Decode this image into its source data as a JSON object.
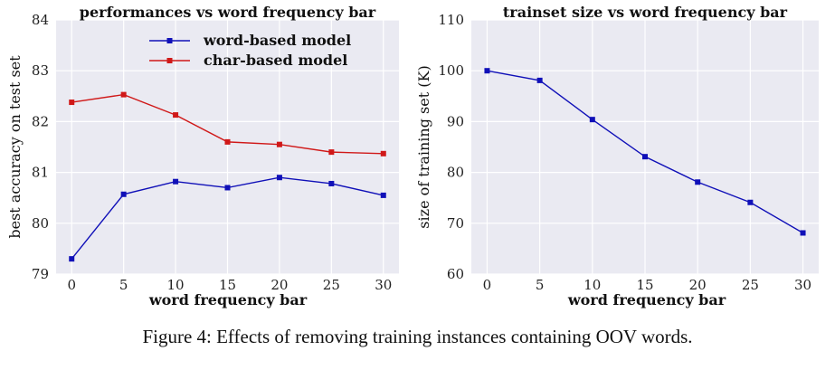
{
  "caption": "Figure 4: Effects of removing training instances containing OOV words.",
  "colors": {
    "plot_background": "#eaeaf2",
    "grid": "#ffffff",
    "word_series": "#1010b8",
    "char_series": "#d01818"
  },
  "chart_data": [
    {
      "type": "line",
      "title": "performances vs word frequency bar",
      "xlabel": "word frequency bar",
      "ylabel": "best accuracy on test set",
      "x": [
        0,
        5,
        10,
        15,
        20,
        25,
        30
      ],
      "xlim": [
        -1.5,
        31.5
      ],
      "ylim": [
        79,
        84
      ],
      "xticks": [
        "0",
        "5",
        "10",
        "15",
        "20",
        "25",
        "30"
      ],
      "yticks": [
        "79",
        "80",
        "81",
        "82",
        "83",
        "84"
      ],
      "grid": true,
      "legend": "top-center",
      "series": [
        {
          "name": "word-based model",
          "color": "#1010b8",
          "values": [
            79.3,
            80.57,
            80.82,
            80.7,
            80.9,
            80.78,
            80.55
          ]
        },
        {
          "name": "char-based model",
          "color": "#d01818",
          "values": [
            82.38,
            82.53,
            82.13,
            81.6,
            81.55,
            81.4,
            81.37
          ]
        }
      ]
    },
    {
      "type": "line",
      "title": "trainset size vs word frequency bar",
      "xlabel": "word frequency bar",
      "ylabel": "size of training set (K)",
      "x": [
        0,
        5,
        10,
        15,
        20,
        25,
        30
      ],
      "xlim": [
        -1.5,
        31.5
      ],
      "ylim": [
        60,
        110
      ],
      "xticks": [
        "0",
        "5",
        "10",
        "15",
        "20",
        "25",
        "30"
      ],
      "yticks": [
        "60",
        "70",
        "80",
        "90",
        "100",
        "110"
      ],
      "grid": true,
      "legend": "none",
      "series": [
        {
          "color": "#1010b8",
          "values": [
            100,
            98.1,
            90.4,
            83.1,
            78.1,
            74.1,
            68.1
          ]
        }
      ]
    }
  ]
}
